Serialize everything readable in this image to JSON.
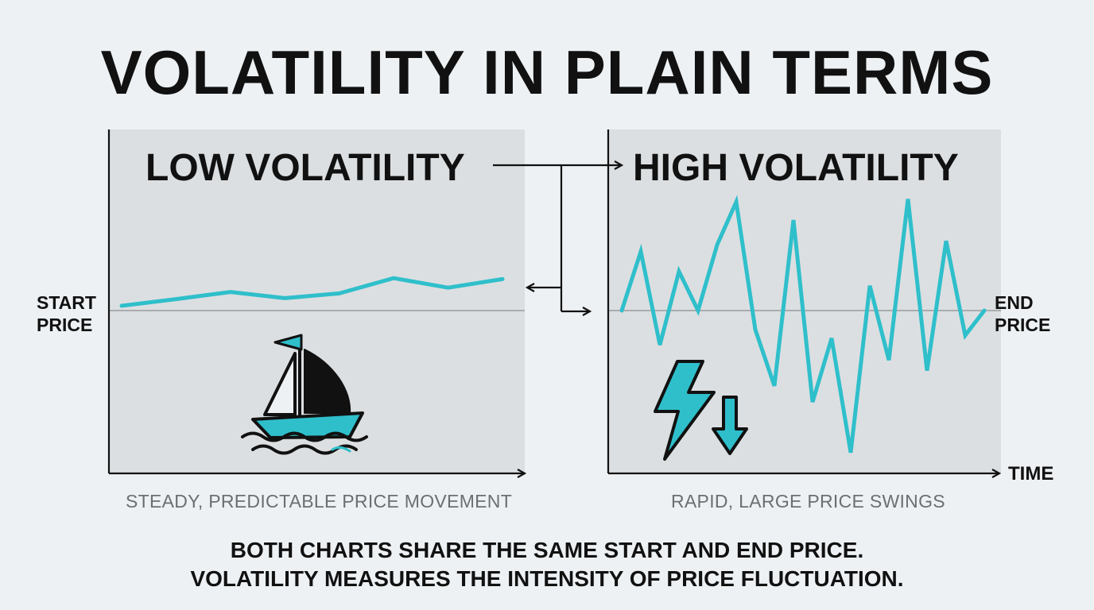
{
  "title": "VOLATILITY IN PLAIN TERMS",
  "left_panel": {
    "title": "LOW VOLATILITY",
    "caption": "STEADY, PREDICTABLE PRICE MOVEMENT",
    "icon": "sailboat-icon",
    "series": [
      0.5,
      1.2,
      1.95,
      1.3,
      1.8,
      3.4,
      2.4,
      3.3
    ]
  },
  "right_panel": {
    "title": "HIGH VOLATILITY",
    "caption": "RAPID, LARGE PRICE SWINGS",
    "icons": [
      "lightning-bolt-icon",
      "down-arrow-icon"
    ],
    "series": [
      0,
      6.2,
      -3.6,
      4.1,
      0,
      6.9,
      11.4,
      -2,
      -7.9,
      9.5,
      -9.6,
      -2.9,
      -14.9,
      2.6,
      -5.2,
      11.7,
      -6.3,
      7.3,
      -2.6,
      0
    ]
  },
  "labels": {
    "start_price_line1": "START",
    "start_price_line2": "PRICE",
    "end_price_line1": "END",
    "end_price_line2": "PRICE",
    "time": "TIME"
  },
  "footer": {
    "line1": "BOTH CHARTS SHARE THE SAME START AND END PRICE.",
    "line2": "VOLATILITY MEASURES THE INTENSITY OF PRICE FLUCTUATION."
  },
  "colors": {
    "background": "#edf1f3",
    "panel": "#dcdfe1",
    "line": "#2fbfcb",
    "text": "#111111",
    "caption": "#6b6f72",
    "baseline": "#a9adb0"
  }
}
